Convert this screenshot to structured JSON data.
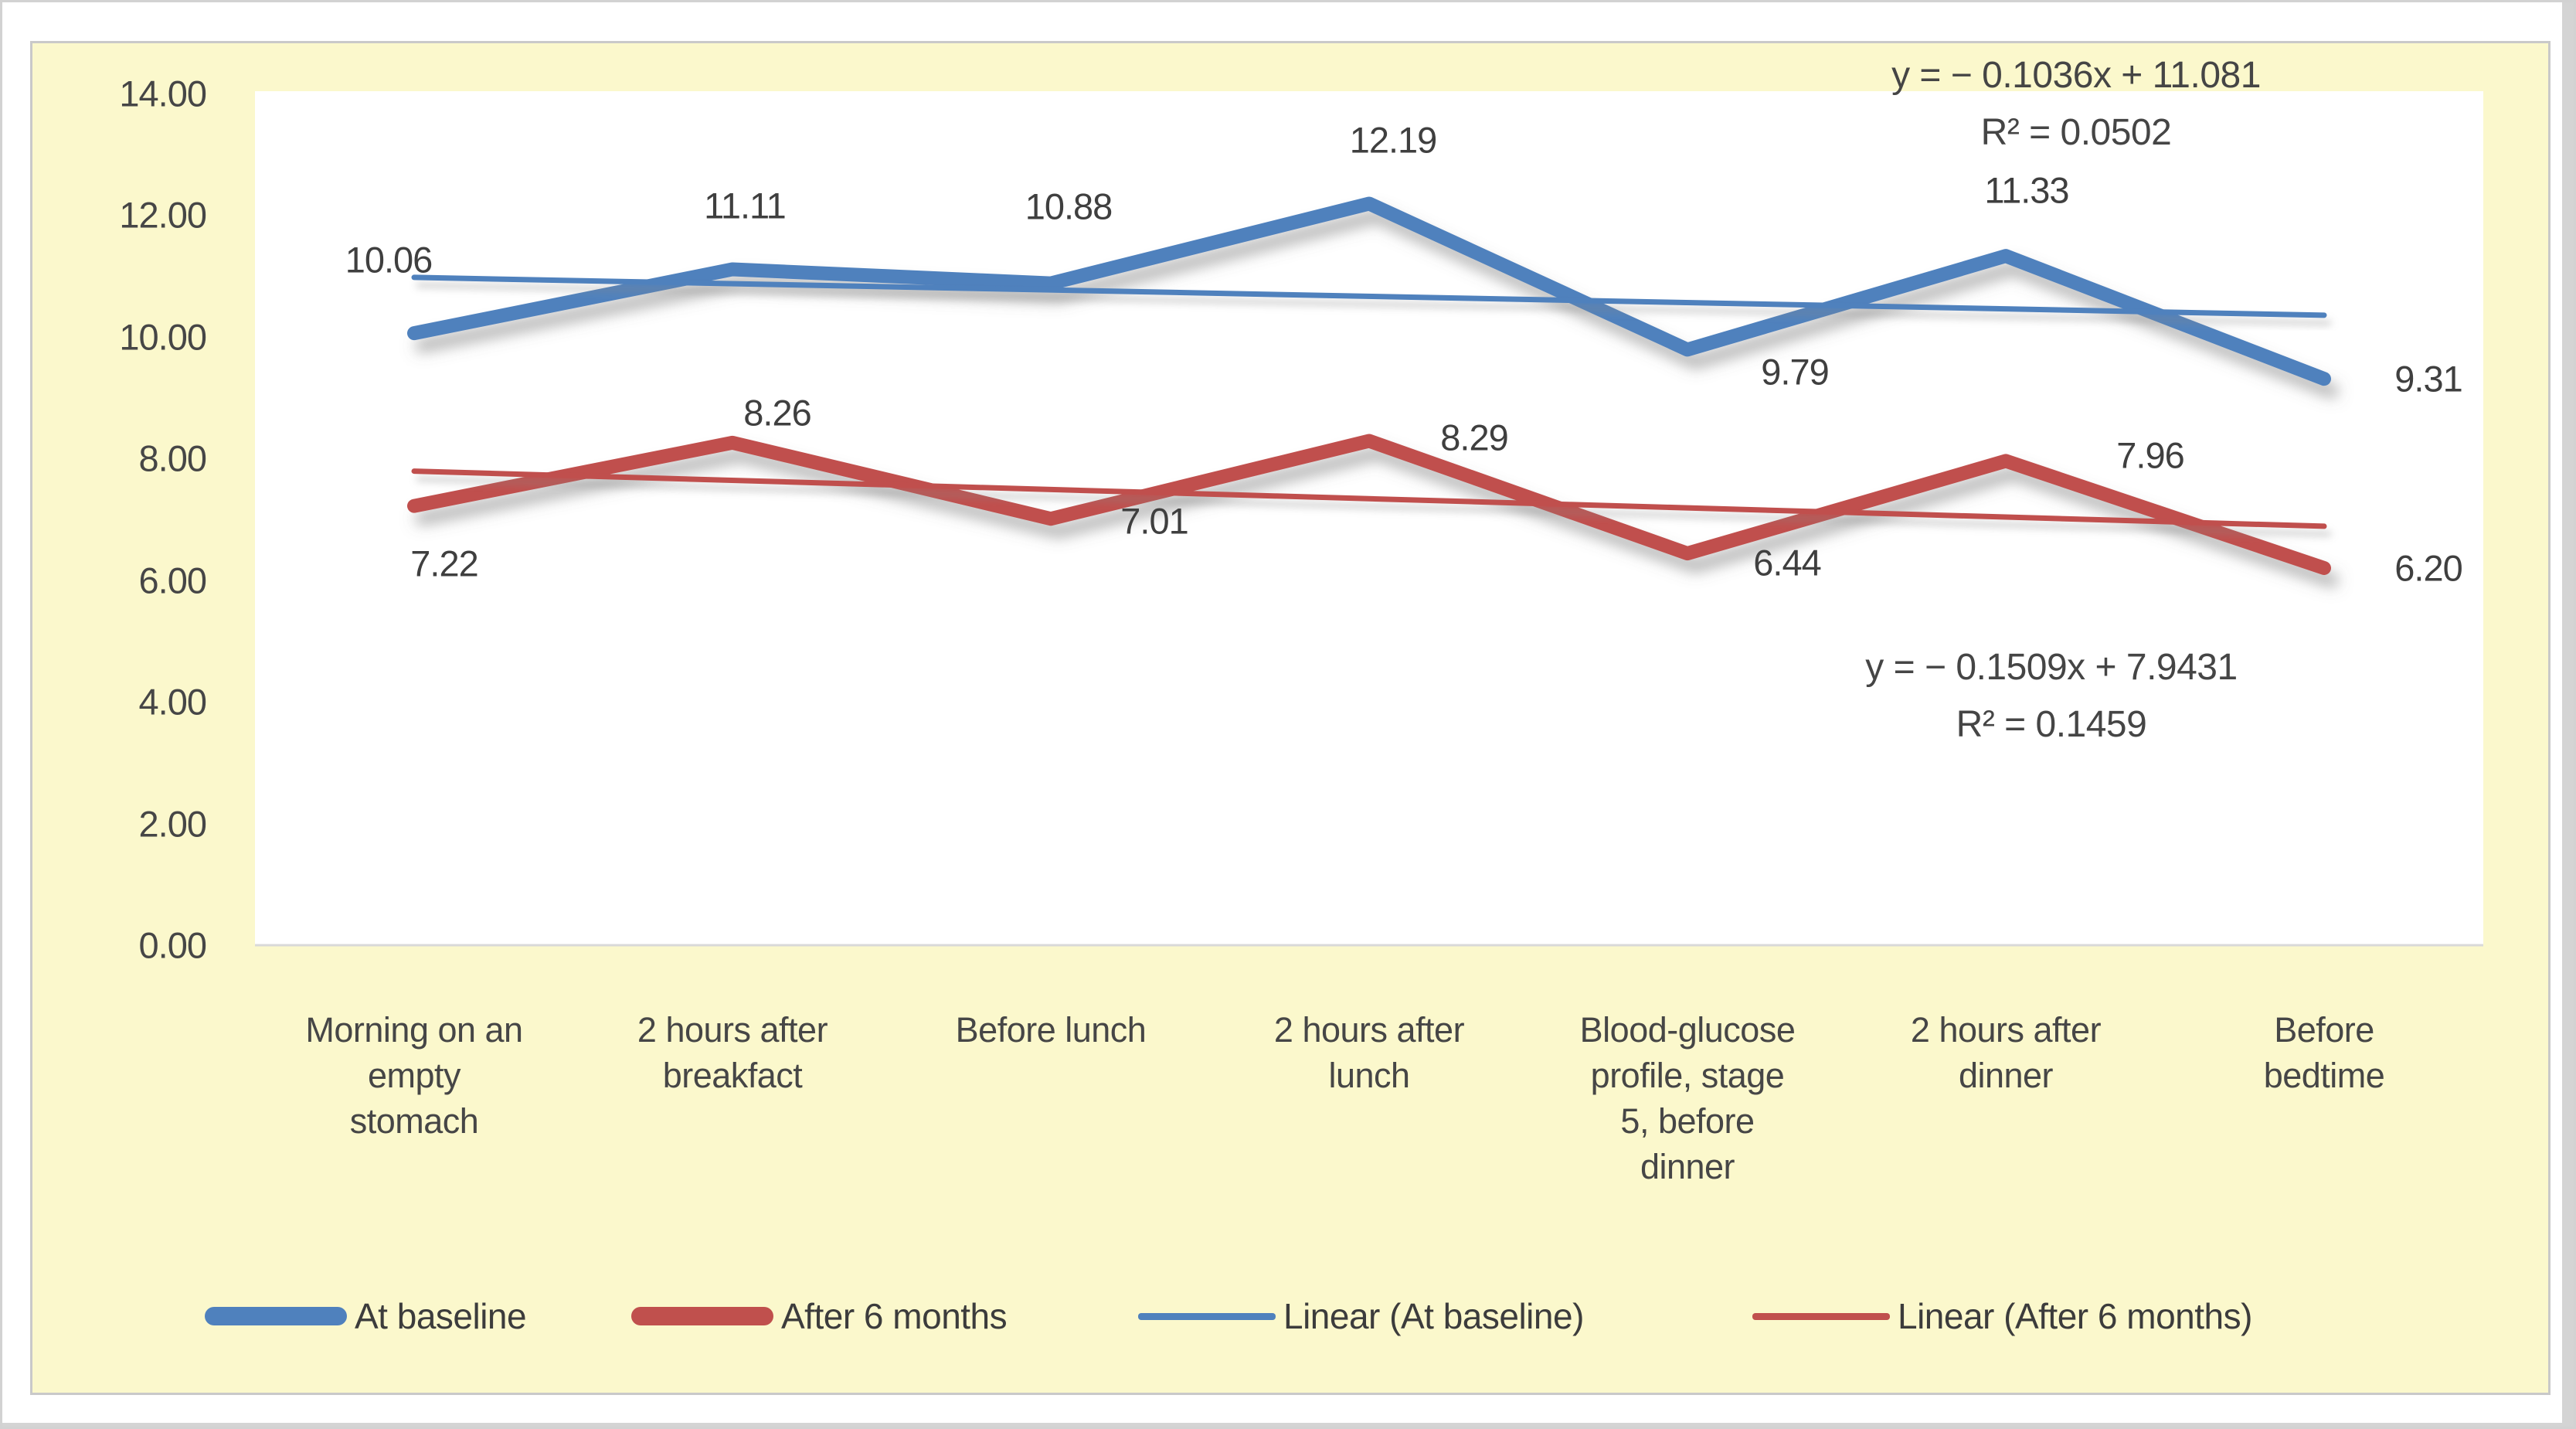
{
  "window": {
    "colors": {
      "panel_fill": "#FBF8CC",
      "panel_border": "#c9c9c9",
      "plot_fill": "#ffffff",
      "axis_line": "#d9d9d9",
      "text_color": "#464646",
      "label_color": "#3f3f3f",
      "eq_color": "#454545",
      "legend_color": "#3c3c3c"
    }
  },
  "chart_data": {
    "type": "line",
    "title": "",
    "categories": [
      "Morning on an empty stomach",
      "2 hours after breakfact",
      "Before lunch",
      "2 hours after lunch",
      "Blood-glucose profile, stage 5, before dinner",
      "2 hours after dinner",
      "Before bedtime"
    ],
    "category_lines": [
      [
        "Morning on an",
        "empty",
        "stomach"
      ],
      [
        "2 hours after",
        "breakfact"
      ],
      [
        "Before lunch"
      ],
      [
        "2 hours after",
        "lunch"
      ],
      [
        "Blood-glucose",
        "profile, stage",
        "5, before",
        "dinner"
      ],
      [
        "2 hours after",
        "dinner"
      ],
      [
        "Before",
        "bedtime"
      ]
    ],
    "series": [
      {
        "name": "At baseline",
        "color": "#4F81BD",
        "values": [
          10.06,
          11.11,
          10.88,
          12.19,
          9.79,
          11.33,
          9.31
        ],
        "data_labels": [
          "10.06",
          "11.11",
          "10.88",
          "12.19",
          "9.79",
          "11.33",
          "9.31"
        ]
      },
      {
        "name": "After 6 months",
        "color": "#C0504D",
        "values": [
          7.22,
          8.26,
          7.01,
          8.29,
          6.44,
          7.96,
          6.2
        ],
        "data_labels": [
          "7.22",
          "8.26",
          "7.01",
          "8.29",
          "6.44",
          "7.96",
          "6.20"
        ]
      }
    ],
    "trendlines": [
      {
        "name": "Linear (At baseline)",
        "color": "#4F81BD",
        "slope": -0.1036,
        "intercept": 11.081,
        "equation": "y = − 0.1036x + 11.081",
        "r_squared": "R² = 0.0502"
      },
      {
        "name": "Linear (After 6 months)",
        "color": "#C0504D",
        "slope": -0.1509,
        "intercept": 7.9431,
        "equation": "y = − 0.1509x + 7.9431",
        "r_squared": "R² = 0.1459"
      }
    ],
    "y_axis": {
      "min": 0,
      "max": 14,
      "step": 2,
      "tick_labels": [
        "14.00",
        "12.00",
        "10.00",
        "8.00",
        "6.00",
        "4.00",
        "2.00",
        "0.00"
      ]
    },
    "x_axis": {
      "label": ""
    },
    "grid": false,
    "legend": {
      "position": "bottom",
      "entries": [
        {
          "label": "At baseline",
          "style": "thick",
          "color": "#4F81BD"
        },
        {
          "label": "After 6 months",
          "style": "thick",
          "color": "#C0504D"
        },
        {
          "label": "Linear (At baseline)",
          "style": "thin",
          "color": "#4F81BD"
        },
        {
          "label": "Linear (After 6 months)",
          "style": "thin",
          "color": "#C0504D"
        }
      ]
    }
  },
  "layout_hints": {
    "ylim": [
      0,
      14
    ],
    "label_offsets": [
      [
        [
          -33,
          -95
        ],
        [
          16,
          -82
        ],
        [
          23,
          -100
        ],
        [
          31,
          -82
        ],
        [
          139,
          29
        ],
        [
          27,
          -85
        ],
        [
          135,
          0
        ]
      ],
      [
        [
          39,
          74
        ],
        [
          58,
          -39
        ],
        [
          134,
          3
        ],
        [
          136,
          -4
        ],
        [
          129,
          12
        ],
        [
          187,
          -7
        ],
        [
          135,
          0
        ]
      ]
    ]
  }
}
